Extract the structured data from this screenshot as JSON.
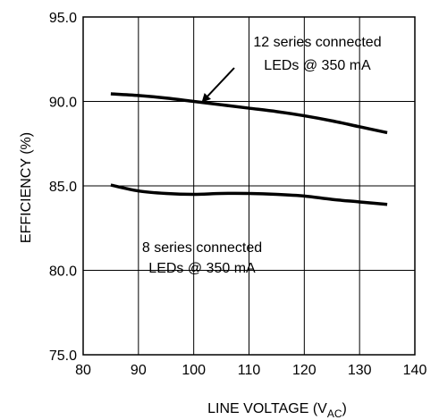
{
  "chart_data": {
    "type": "line",
    "xlabel": "LINE VOLTAGE (V",
    "xlabel_sub": "AC",
    "xlabel_close": ")",
    "ylabel": "EFFICIENCY (%)",
    "xlim": [
      80,
      140
    ],
    "ylim": [
      75,
      95
    ],
    "xticks": [
      80,
      90,
      100,
      110,
      120,
      130,
      140
    ],
    "yticks": [
      75,
      80,
      85,
      90,
      95
    ],
    "xtick_labels": [
      "80",
      "90",
      "100",
      "110",
      "120",
      "130",
      "140"
    ],
    "ytick_labels": [
      "75.0",
      "80.0",
      "85.0",
      "90.0",
      "95.0"
    ],
    "grid": true,
    "series": [
      {
        "x": [
          85,
          90,
          95,
          100,
          105,
          110,
          115,
          120,
          125,
          130,
          135
        ],
        "y": [
          90.45,
          90.35,
          90.2,
          90.0,
          89.8,
          89.6,
          89.4,
          89.15,
          88.85,
          88.5,
          88.15
        ]
      },
      {
        "x": [
          85,
          90,
          95,
          100,
          105,
          110,
          115,
          120,
          125,
          130,
          135
        ],
        "y": [
          85.05,
          84.7,
          84.55,
          84.5,
          84.55,
          84.55,
          84.5,
          84.4,
          84.2,
          84.05,
          83.9
        ]
      }
    ],
    "annotations": [
      {
        "lines": [
          "12 series connected",
          "LEDs @ 350 mA"
        ],
        "arrow_to": [
          101,
          89.8
        ]
      },
      {
        "lines": [
          "8 series connected",
          "LEDs @ 350 mA"
        ]
      }
    ]
  }
}
